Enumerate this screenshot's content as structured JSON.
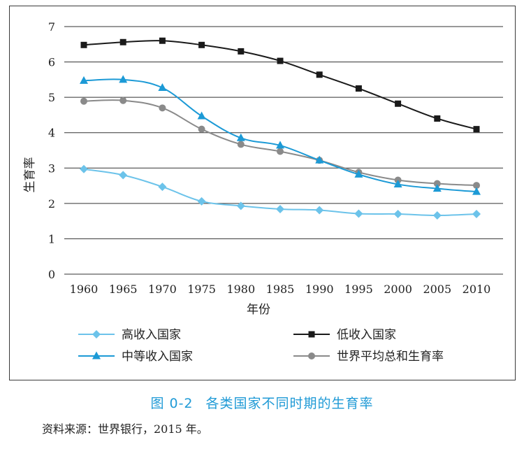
{
  "chart_data": {
    "type": "line",
    "xlabel": "年份",
    "ylabel": "生育率",
    "ylim": [
      0,
      7
    ],
    "yticks": [
      "0",
      "1",
      "2",
      "3",
      "4",
      "5",
      "6",
      "7"
    ],
    "categories": [
      "1960",
      "1965",
      "1970",
      "1975",
      "1980",
      "1985",
      "1990",
      "1995",
      "2000",
      "2005",
      "2010"
    ],
    "grid": "horizontal",
    "legend_position": "bottom",
    "series": [
      {
        "name": "高收入国家",
        "marker": "diamond",
        "color": "#6cc3ea",
        "values": [
          2.97,
          2.8,
          2.47,
          2.06,
          1.93,
          1.84,
          1.81,
          1.71,
          1.7,
          1.66,
          1.7
        ]
      },
      {
        "name": "低收入国家",
        "marker": "square",
        "color": "#1a1a1a",
        "values": [
          6.48,
          6.56,
          6.6,
          6.48,
          6.3,
          6.03,
          5.64,
          5.25,
          4.82,
          4.4,
          4.1
        ]
      },
      {
        "name": "中等收入国家",
        "marker": "triangle",
        "color": "#1c9ad6",
        "values": [
          5.47,
          5.5,
          5.27,
          4.47,
          3.85,
          3.64,
          3.22,
          2.82,
          2.54,
          2.42,
          2.33
        ]
      },
      {
        "name": "世界平均总和生育率",
        "marker": "circle",
        "color": "#8a8a8a",
        "values": [
          4.89,
          4.91,
          4.7,
          4.1,
          3.67,
          3.47,
          3.22,
          2.88,
          2.66,
          2.56,
          2.51
        ]
      }
    ]
  },
  "caption": {
    "number": "图 0-2",
    "title": "各类国家不同时期的生育率"
  },
  "source_note": "资料来源：世界银行，2015 年。"
}
